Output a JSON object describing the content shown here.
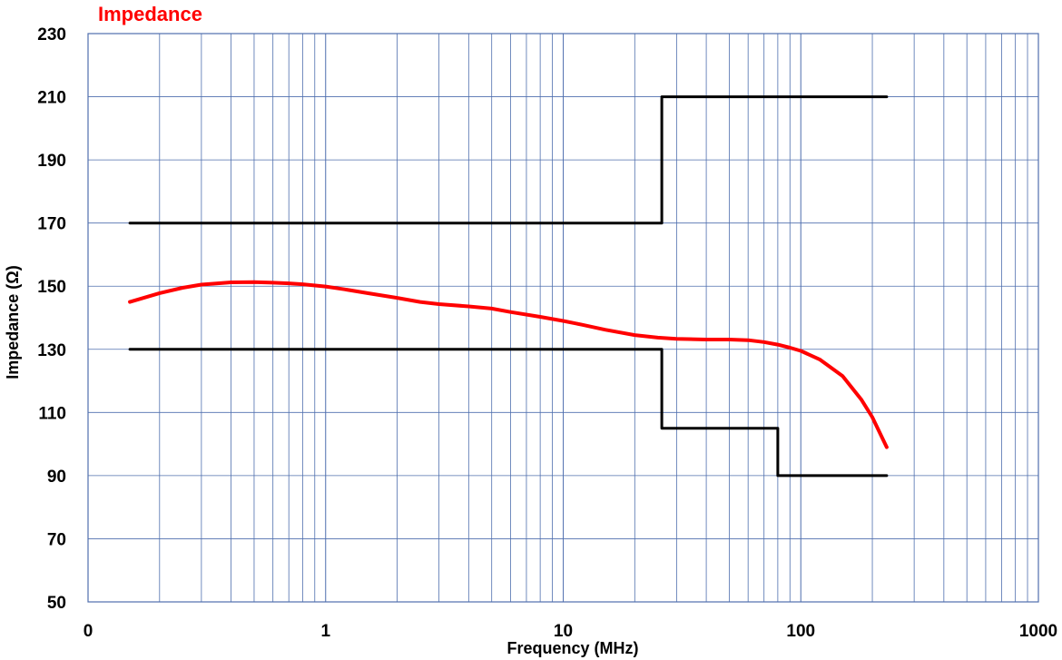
{
  "chart_data": {
    "type": "line",
    "title": "Impedance",
    "title_color": "#ff0000",
    "xlabel": "Frequency (MHz)",
    "ylabel": "Impedance (Ω)",
    "x_scale": "log",
    "x_tick_labels": [
      "0",
      "1",
      "10",
      "100",
      "1000"
    ],
    "x_tick_values": [
      0.1,
      1,
      10,
      100,
      1000
    ],
    "xlim": [
      0.1,
      1000
    ],
    "ylim": [
      50,
      230
    ],
    "y_ticks": [
      50,
      70,
      90,
      110,
      130,
      150,
      170,
      190,
      210,
      230
    ],
    "grid": true,
    "grid_color": "#4f6fae",
    "series": [
      {
        "role": "measured",
        "color": "#ff0000",
        "points": [
          [
            0.15,
            145
          ],
          [
            0.2,
            147.8
          ],
          [
            0.25,
            149.5
          ],
          [
            0.3,
            150.5
          ],
          [
            0.4,
            151.2
          ],
          [
            0.5,
            151.3
          ],
          [
            0.6,
            151.1
          ],
          [
            0.7,
            150.9
          ],
          [
            0.8,
            150.6
          ],
          [
            1.0,
            149.9
          ],
          [
            1.2,
            149
          ],
          [
            1.5,
            147.8
          ],
          [
            2,
            146.3
          ],
          [
            2.5,
            145
          ],
          [
            3,
            144.3
          ],
          [
            4,
            143.6
          ],
          [
            5,
            142.9
          ],
          [
            6,
            141.8
          ],
          [
            8,
            140.3
          ],
          [
            10,
            139
          ],
          [
            12,
            137.8
          ],
          [
            15,
            136.2
          ],
          [
            20,
            134.5
          ],
          [
            25,
            133.7
          ],
          [
            30,
            133.3
          ],
          [
            40,
            133.1
          ],
          [
            50,
            133.1
          ],
          [
            60,
            132.9
          ],
          [
            70,
            132.3
          ],
          [
            80,
            131.5
          ],
          [
            90,
            130.5
          ],
          [
            100,
            129.5
          ],
          [
            120,
            126.8
          ],
          [
            150,
            121.5
          ],
          [
            180,
            114
          ],
          [
            200,
            108.5
          ],
          [
            220,
            102
          ],
          [
            230,
            99
          ]
        ]
      },
      {
        "role": "upper-limit",
        "color": "#000000",
        "points": [
          [
            0.15,
            170
          ],
          [
            26,
            170
          ],
          [
            26,
            210
          ],
          [
            230,
            210
          ]
        ]
      },
      {
        "role": "lower-limit",
        "color": "#000000",
        "points": [
          [
            0.15,
            130
          ],
          [
            26,
            130
          ],
          [
            26,
            105
          ],
          [
            80,
            105
          ],
          [
            80,
            90
          ],
          [
            230,
            90
          ]
        ]
      }
    ]
  }
}
